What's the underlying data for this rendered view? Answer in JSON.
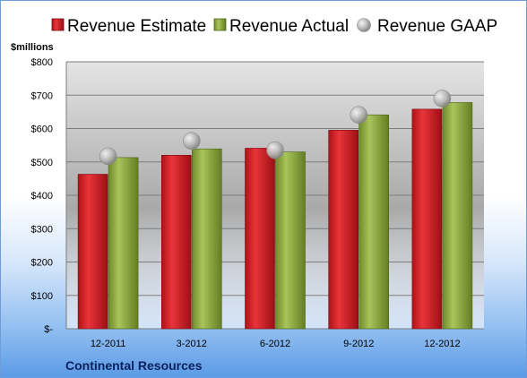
{
  "chart_data": {
    "type": "bar",
    "unit_label": "$millions",
    "categories": [
      "12-2011",
      "3-2012",
      "6-2012",
      "9-2012",
      "12-2012"
    ],
    "series": [
      {
        "name": "Revenue Estimate",
        "kind": "bar",
        "color": "#d42026",
        "values": [
          463,
          520,
          541,
          595,
          658
        ]
      },
      {
        "name": "Revenue Actual",
        "kind": "bar",
        "color": "#8fae3e",
        "values": [
          513,
          539,
          530,
          641,
          678
        ]
      },
      {
        "name": "Revenue GAAP",
        "kind": "marker",
        "color": "#a8a8a8",
        "values": [
          517,
          563,
          535,
          641,
          690
        ]
      }
    ],
    "ylim": [
      0,
      800
    ],
    "yticks": [
      0,
      100,
      200,
      300,
      400,
      500,
      600,
      700,
      800
    ],
    "ytick_labels": [
      "$-",
      "$100",
      "$200",
      "$300",
      "$400",
      "$500",
      "$600",
      "$700",
      "$800"
    ],
    "grid": true,
    "legend_position": "top",
    "company": "Continental Resources"
  }
}
